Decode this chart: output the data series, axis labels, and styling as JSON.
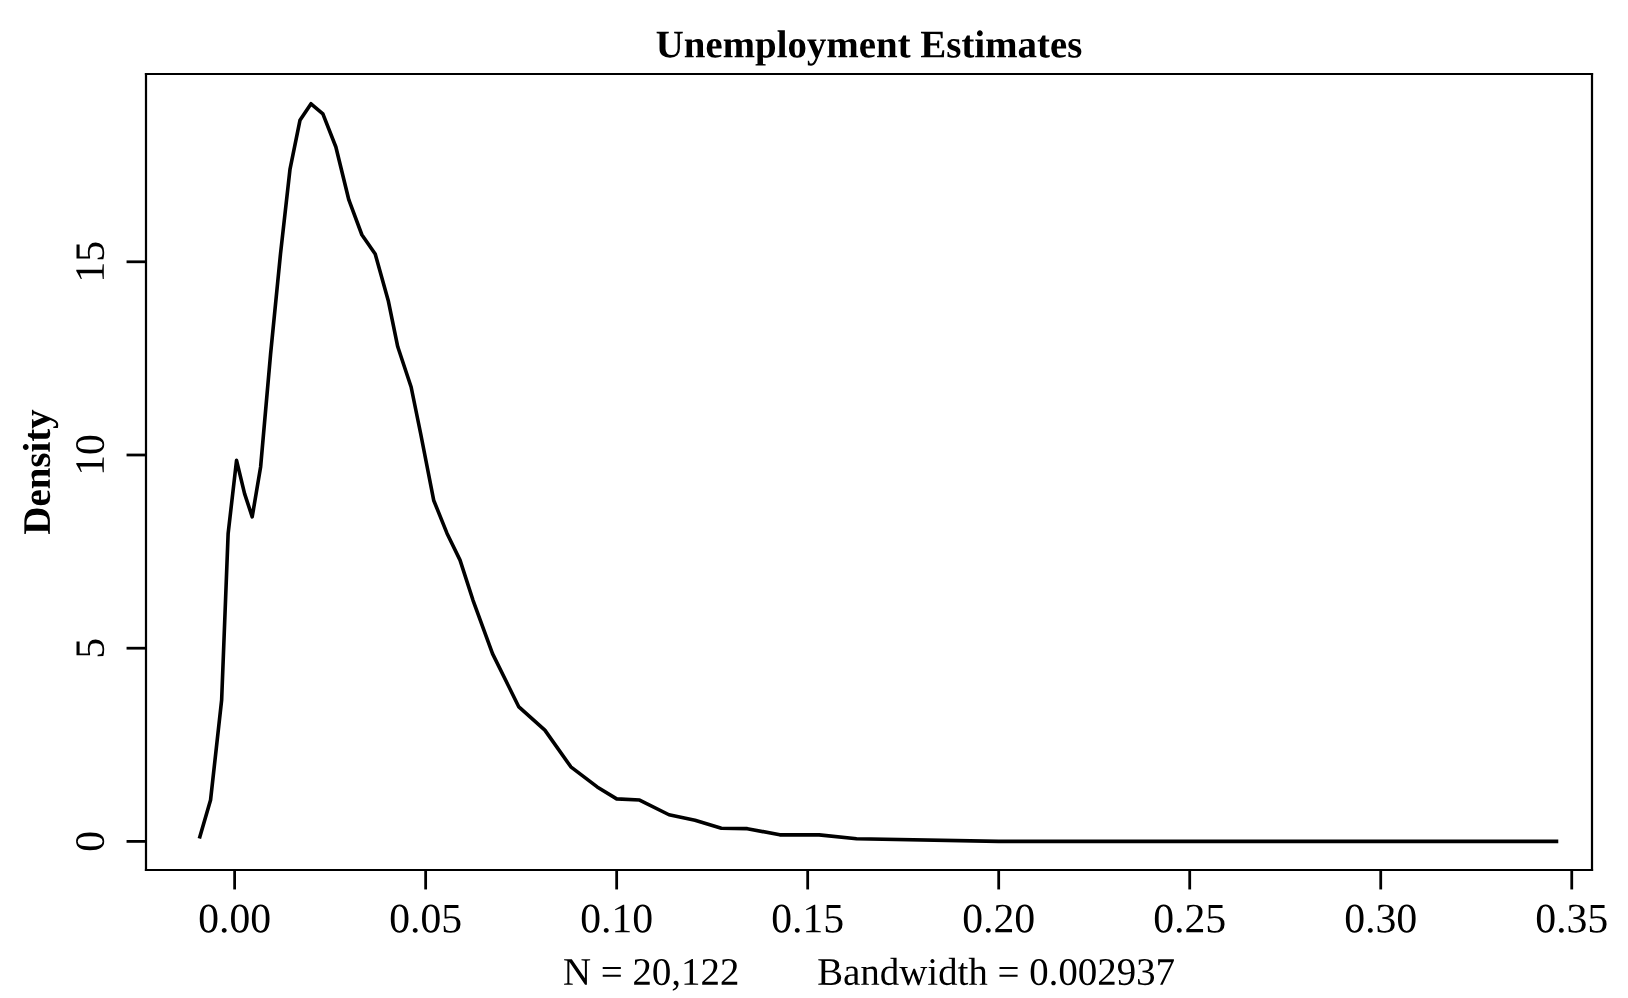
{
  "chart_data": {
    "type": "line",
    "title": "Unemployment Estimates",
    "xlabel": "N = 20,122        Bandwidth = 0.002937",
    "ylabel": "Density",
    "x": [
      -0.0091,
      -0.0063,
      -0.0034,
      -0.0017,
      0.0005,
      0.0026,
      0.0046,
      0.0068,
      0.0094,
      0.012,
      0.0145,
      0.0171,
      0.02,
      0.0231,
      0.0265,
      0.0299,
      0.0333,
      0.0368,
      0.0402,
      0.0427,
      0.0462,
      0.0487,
      0.0521,
      0.0556,
      0.059,
      0.0624,
      0.0675,
      0.0744,
      0.0812,
      0.088,
      0.0949,
      0.1,
      0.106,
      0.1137,
      0.1205,
      0.1274,
      0.1342,
      0.1427,
      0.153,
      0.1628,
      0.2,
      0.25,
      0.3,
      0.346
    ],
    "series": [
      {
        "color": "#000000",
        "values": [
          0.12,
          1.07,
          3.66,
          7.97,
          9.86,
          9.0,
          8.4,
          9.69,
          12.6,
          15.2,
          17.4,
          18.66,
          19.09,
          18.83,
          17.97,
          16.6,
          15.7,
          15.2,
          14.0,
          12.8,
          11.76,
          10.55,
          8.83,
          7.97,
          7.28,
          6.24,
          4.86,
          3.48,
          2.88,
          1.93,
          1.41,
          1.1,
          1.07,
          0.69,
          0.55,
          0.34,
          0.33,
          0.17,
          0.17,
          0.07,
          0.0,
          0.0,
          0.0,
          0.0
        ]
      }
    ],
    "xlim": [
      -0.0232,
      0.3553
    ],
    "ylim": [
      -0.74,
      19.86
    ],
    "xticks": [
      {
        "value": 0,
        "label": "0.00"
      },
      {
        "value": 0.05,
        "label": "0.05"
      },
      {
        "value": 0.1,
        "label": "0.10"
      },
      {
        "value": 0.15,
        "label": "0.15"
      },
      {
        "value": 0.2,
        "label": "0.20"
      },
      {
        "value": 0.25,
        "label": "0.25"
      },
      {
        "value": 0.3,
        "label": "0.30"
      },
      {
        "value": 0.35,
        "label": "0.35"
      }
    ],
    "yticks": [
      0,
      5,
      10,
      15
    ],
    "grid": false,
    "legend": false,
    "marker": "none",
    "line_style": "solid"
  }
}
